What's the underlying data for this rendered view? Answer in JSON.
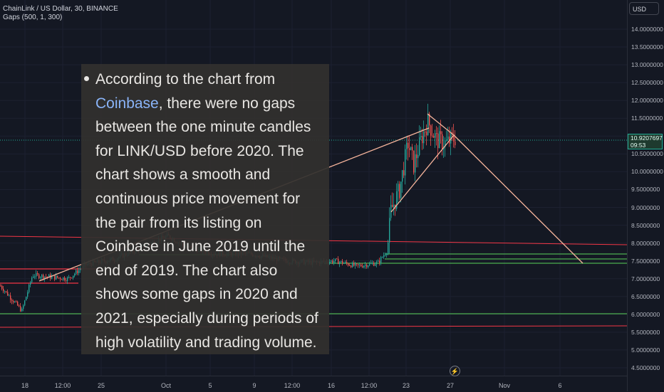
{
  "header": {
    "symbol_line": "ChainLink / US Dollar, 30, BINANCE",
    "indicator_line": "Gaps (500, 1, 300)"
  },
  "price_scale": {
    "currency_button": "USD",
    "labels": [
      "14.0000000",
      "13.5000000",
      "13.0000000",
      "12.5000000",
      "12.0000000",
      "11.5000000",
      "11.0000000",
      "10.5000000",
      "10.0000000",
      "9.5000000",
      "9.0000000",
      "8.5000000",
      "8.0000000",
      "7.5000000",
      "7.0000000",
      "6.5000000",
      "6.0000000",
      "5.5000000",
      "5.0000000",
      "4.5000000"
    ],
    "current_price": "10.9207697",
    "countdown": "09:53"
  },
  "time_axis": {
    "labels": [
      "18",
      "12:00",
      "25",
      "Oct",
      "5",
      "9",
      "12:00",
      "16",
      "12:00",
      "23",
      "27",
      "Nov",
      "6"
    ]
  },
  "colors": {
    "background": "#141823",
    "up": "#26a69a",
    "down": "#ef5350",
    "trendline": "#f7b59c",
    "support": "#4caf50",
    "resistance": "#f23645"
  },
  "overlay": {
    "text_before_link": "According to the chart from ",
    "link_text": "Coinbase",
    "text_after_link": ", there were no gaps between the one minute candles for LINK/USD before 2020. The chart shows a smooth and continuous price movement for the pair from its listing on Coinbase in June 2019 until the end of 2019. The chart also shows some gaps in 2020 and 2021, especially during periods of high volatility and trading volume."
  },
  "icons": {
    "bolt": "lightning-icon"
  }
}
